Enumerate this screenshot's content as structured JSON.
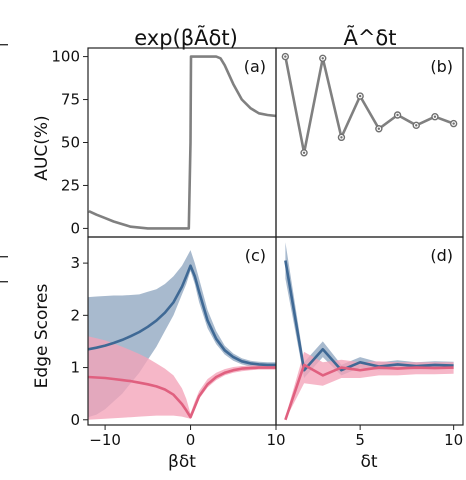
{
  "chart_data": [
    {
      "id": "a",
      "type": "line",
      "column_title": "exp(βÃδt)",
      "panel_label": "(a)",
      "ylabel": "AUC(%)",
      "xlabel": "",
      "xlim": [
        -12,
        10
      ],
      "ylim": [
        -5,
        105
      ],
      "yticks": [
        0,
        25,
        50,
        75,
        100
      ],
      "xticks": [],
      "color": "#808080",
      "series": [
        {
          "x": [
            -11.9,
            -11,
            -10,
            -9,
            -8,
            -7,
            -6,
            -5,
            -4.5,
            -4,
            -3,
            -2,
            -1,
            -0.2,
            0,
            0.05,
            0.5,
            1,
            2,
            3,
            3.5,
            4,
            5,
            6,
            7,
            8,
            9,
            10
          ],
          "y": [
            10,
            8,
            6,
            4,
            2.5,
            1,
            0.5,
            0,
            0,
            0,
            0,
            0,
            0,
            0,
            50,
            100,
            100,
            100,
            100,
            100,
            99,
            95,
            84,
            75,
            70,
            67,
            66,
            65.5
          ]
        }
      ]
    },
    {
      "id": "b",
      "type": "line",
      "column_title": "Ã^δt",
      "panel_label": "(b)",
      "xlim": [
        0.5,
        10.5
      ],
      "ylim": [
        -5,
        105
      ],
      "color": "#808080",
      "series": [
        {
          "x": [
            1,
            2,
            3,
            4,
            5,
            6,
            7,
            8,
            9,
            10
          ],
          "y": [
            100,
            44,
            99,
            53,
            77,
            58,
            66,
            60,
            65,
            61
          ]
        }
      ]
    },
    {
      "id": "c",
      "type": "area",
      "panel_label": "(c)",
      "ylabel": "Edge Scores",
      "xlabel": "βδt",
      "xlim": [
        -12,
        10
      ],
      "ylim": [
        -0.1,
        3.5
      ],
      "yticks": [
        0,
        1,
        2,
        3
      ],
      "xticks": [
        -10,
        0,
        10
      ],
      "series": [
        {
          "color": "#3f6995",
          "band_color": "#8fa7c0",
          "x": [
            -12,
            -11,
            -10,
            -9,
            -8,
            -7,
            -6,
            -5,
            -4,
            -3,
            -2,
            -1,
            -0.5,
            0,
            0.5,
            1,
            2,
            3,
            4,
            5,
            6,
            7,
            8,
            9,
            10
          ],
          "y": [
            1.35,
            1.38,
            1.42,
            1.47,
            1.53,
            1.6,
            1.68,
            1.78,
            1.9,
            2.05,
            2.25,
            2.55,
            2.75,
            2.95,
            2.75,
            2.45,
            1.9,
            1.55,
            1.33,
            1.2,
            1.12,
            1.08,
            1.06,
            1.05,
            1.05
          ],
          "lower": [
            0.05,
            0.1,
            0.2,
            0.35,
            0.5,
            0.7,
            0.9,
            1.15,
            1.4,
            1.7,
            2.0,
            2.4,
            2.6,
            2.85,
            2.6,
            2.25,
            1.75,
            1.45,
            1.25,
            1.13,
            1.06,
            1.02,
            1.0,
            0.99,
            0.99
          ],
          "upper": [
            2.35,
            2.36,
            2.37,
            2.38,
            2.38,
            2.39,
            2.4,
            2.45,
            2.5,
            2.6,
            2.75,
            2.95,
            3.1,
            3.25,
            3.0,
            2.7,
            2.1,
            1.7,
            1.42,
            1.27,
            1.18,
            1.13,
            1.11,
            1.1,
            1.1
          ]
        },
        {
          "color": "#e0607f",
          "band_color": "#f4a3b8",
          "x": [
            -12,
            -11,
            -10,
            -9,
            -8,
            -7,
            -6,
            -5,
            -4,
            -3,
            -2,
            -1,
            -0.5,
            0,
            0.5,
            1,
            2,
            3,
            4,
            5,
            6,
            7,
            8,
            9,
            10
          ],
          "y": [
            0.82,
            0.81,
            0.8,
            0.78,
            0.76,
            0.74,
            0.71,
            0.68,
            0.64,
            0.58,
            0.48,
            0.3,
            0.18,
            0.05,
            0.25,
            0.45,
            0.68,
            0.82,
            0.9,
            0.95,
            0.98,
            0.99,
            1.0,
            1.0,
            1.0
          ],
          "lower": [
            0.0,
            0.01,
            0.02,
            0.03,
            0.04,
            0.05,
            0.06,
            0.07,
            0.08,
            0.08,
            0.08,
            0.06,
            0.04,
            0.02,
            0.2,
            0.4,
            0.62,
            0.76,
            0.85,
            0.9,
            0.93,
            0.95,
            0.96,
            0.96,
            0.96
          ],
          "upper": [
            1.6,
            1.56,
            1.52,
            1.46,
            1.4,
            1.33,
            1.26,
            1.18,
            1.08,
            0.98,
            0.85,
            0.6,
            0.4,
            0.12,
            0.35,
            0.55,
            0.78,
            0.9,
            0.97,
            1.01,
            1.03,
            1.04,
            1.05,
            1.05,
            1.05
          ]
        }
      ]
    },
    {
      "id": "d",
      "type": "area",
      "panel_label": "(d)",
      "xlabel": "δt",
      "xlim": [
        0.5,
        10.5
      ],
      "ylim": [
        -0.1,
        3.5
      ],
      "xticks": [
        5,
        10
      ],
      "series": [
        {
          "color": "#3f6995",
          "band_color": "#8fa7c0",
          "x": [
            1,
            2,
            3,
            4,
            5,
            6,
            7,
            8,
            9,
            10
          ],
          "y": [
            3.05,
            0.95,
            1.35,
            0.95,
            1.1,
            1.02,
            1.06,
            1.03,
            1.05,
            1.04
          ],
          "lower": [
            2.7,
            0.8,
            1.2,
            0.85,
            1.0,
            0.95,
            0.98,
            0.96,
            0.98,
            0.97
          ],
          "upper": [
            3.4,
            1.1,
            1.5,
            1.05,
            1.2,
            1.1,
            1.14,
            1.1,
            1.12,
            1.11
          ]
        },
        {
          "color": "#e0607f",
          "band_color": "#f4a3b8",
          "x": [
            1,
            2,
            3,
            4,
            5,
            6,
            7,
            8,
            9,
            10
          ],
          "y": [
            0.0,
            1.05,
            0.85,
            1.0,
            0.95,
            1.0,
            0.98,
            1.0,
            0.99,
            1.0
          ],
          "lower": [
            0.0,
            0.7,
            0.65,
            0.8,
            0.8,
            0.85,
            0.85,
            0.87,
            0.87,
            0.88
          ],
          "upper": [
            0.05,
            1.3,
            1.1,
            1.15,
            1.1,
            1.12,
            1.1,
            1.1,
            1.1,
            1.1
          ]
        }
      ]
    }
  ]
}
